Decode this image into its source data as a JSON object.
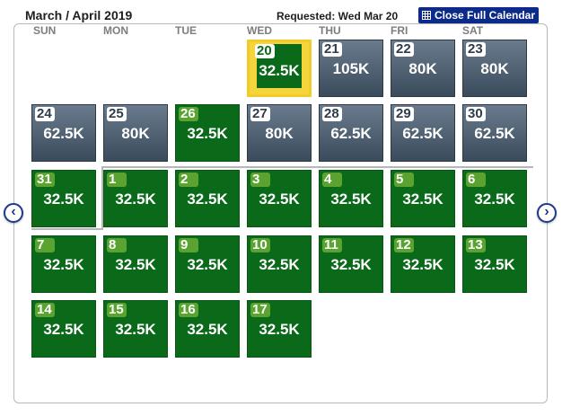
{
  "header": {
    "title": "March / April 2019",
    "requested": "Requested: Wed Mar 20",
    "close_label": "Close Full Calendar"
  },
  "weekdays": [
    "SUN",
    "MON",
    "TUE",
    "WED",
    "THU",
    "FRI",
    "SAT"
  ],
  "colors": {
    "gray_cell": "#4f6172",
    "green_cell": "#0b6a1a",
    "selected_border": "#f2cb2a",
    "button_blue": "#0b2a8a"
  },
  "days": [
    {
      "day": "20",
      "price": "32.5K",
      "style": "selected"
    },
    {
      "day": "21",
      "price": "105K",
      "style": "gray"
    },
    {
      "day": "22",
      "price": "80K",
      "style": "gray"
    },
    {
      "day": "23",
      "price": "80K",
      "style": "gray"
    },
    {
      "day": "24",
      "price": "62.5K",
      "style": "gray"
    },
    {
      "day": "25",
      "price": "80K",
      "style": "gray"
    },
    {
      "day": "26",
      "price": "32.5K",
      "style": "green"
    },
    {
      "day": "27",
      "price": "80K",
      "style": "gray"
    },
    {
      "day": "28",
      "price": "62.5K",
      "style": "gray"
    },
    {
      "day": "29",
      "price": "62.5K",
      "style": "gray"
    },
    {
      "day": "30",
      "price": "62.5K",
      "style": "gray"
    },
    {
      "day": "31",
      "price": "32.5K",
      "style": "green"
    },
    {
      "day": "1",
      "price": "32.5K",
      "style": "green"
    },
    {
      "day": "2",
      "price": "32.5K",
      "style": "green"
    },
    {
      "day": "3",
      "price": "32.5K",
      "style": "green"
    },
    {
      "day": "4",
      "price": "32.5K",
      "style": "green"
    },
    {
      "day": "5",
      "price": "32.5K",
      "style": "green"
    },
    {
      "day": "6",
      "price": "32.5K",
      "style": "green"
    },
    {
      "day": "7",
      "price": "32.5K",
      "style": "green"
    },
    {
      "day": "8",
      "price": "32.5K",
      "style": "green"
    },
    {
      "day": "9",
      "price": "32.5K",
      "style": "green"
    },
    {
      "day": "10",
      "price": "32.5K",
      "style": "green"
    },
    {
      "day": "11",
      "price": "32.5K",
      "style": "green"
    },
    {
      "day": "12",
      "price": "32.5K",
      "style": "green"
    },
    {
      "day": "13",
      "price": "32.5K",
      "style": "green"
    },
    {
      "day": "14",
      "price": "32.5K",
      "style": "green"
    },
    {
      "day": "15",
      "price": "32.5K",
      "style": "green"
    },
    {
      "day": "16",
      "price": "32.5K",
      "style": "green"
    },
    {
      "day": "17",
      "price": "32.5K",
      "style": "green"
    }
  ],
  "nav": {
    "prev_icon": "chevron-left-icon",
    "next_icon": "chevron-right-icon"
  }
}
